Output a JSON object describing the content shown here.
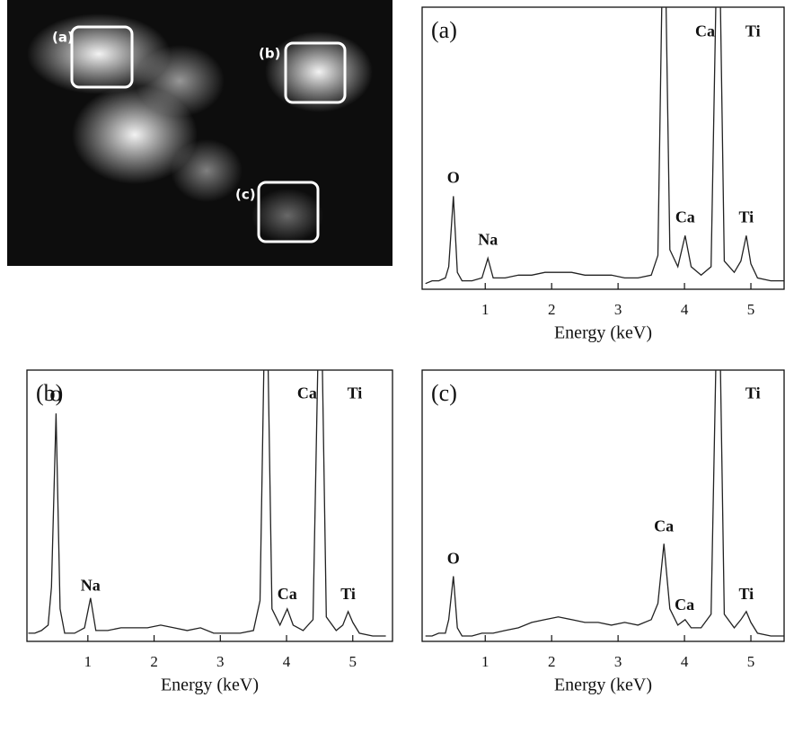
{
  "image": {
    "labels": [
      "(a)",
      "(b)",
      "(c)"
    ]
  },
  "chart_data": [
    {
      "type": "line",
      "panel_label": "(a)",
      "xlabel": "Energy (keV)",
      "xlim": [
        0.05,
        5.5
      ],
      "ylim": [
        0,
        100
      ],
      "xticks": [
        1,
        2,
        3,
        4,
        5
      ],
      "x": [
        0.1,
        0.2,
        0.3,
        0.4,
        0.45,
        0.52,
        0.58,
        0.65,
        0.8,
        0.95,
        1.04,
        1.12,
        1.3,
        1.5,
        1.7,
        1.9,
        2.1,
        2.3,
        2.5,
        2.7,
        2.9,
        3.1,
        3.3,
        3.5,
        3.6,
        3.69,
        3.78,
        3.9,
        4.01,
        4.1,
        4.25,
        4.4,
        4.51,
        4.6,
        4.75,
        4.85,
        4.93,
        5.0,
        5.1,
        5.3,
        5.5
      ],
      "series": [
        {
          "color": "#222222",
          "values": [
            2,
            3,
            3,
            4,
            8,
            33,
            6,
            3,
            3,
            4,
            11,
            4,
            4,
            5,
            5,
            6,
            6,
            6,
            5,
            5,
            5,
            4,
            4,
            5,
            12,
            150,
            14,
            8,
            19,
            8,
            5,
            8,
            150,
            10,
            6,
            10,
            19,
            9,
            4,
            3,
            3
          ]
        }
      ],
      "annotations": [
        {
          "text": "O",
          "x": 0.52,
          "y": 39
        },
        {
          "text": "Na",
          "x": 1.04,
          "y": 17
        },
        {
          "text": "Ca",
          "x": 4.01,
          "y": 25
        },
        {
          "text": "Ti",
          "x": 4.93,
          "y": 25
        },
        {
          "text": "Ca",
          "x": 4.31,
          "y": 91
        },
        {
          "text": "Ti",
          "x": 5.03,
          "y": 91
        }
      ]
    },
    {
      "type": "line",
      "panel_label": "(b)",
      "xlabel": "Energy (keV)",
      "xlim": [
        0.08,
        5.6
      ],
      "ylim": [
        0,
        100
      ],
      "xticks": [
        1,
        2,
        3,
        4,
        5
      ],
      "x": [
        0.1,
        0.2,
        0.3,
        0.4,
        0.45,
        0.52,
        0.58,
        0.65,
        0.8,
        0.95,
        1.04,
        1.12,
        1.3,
        1.5,
        1.7,
        1.9,
        2.1,
        2.3,
        2.5,
        2.7,
        2.9,
        3.1,
        3.3,
        3.5,
        3.6,
        3.69,
        3.78,
        3.9,
        4.01,
        4.1,
        4.25,
        4.4,
        4.51,
        4.6,
        4.75,
        4.85,
        4.93,
        5.0,
        5.1,
        5.3,
        5.5
      ],
      "series": [
        {
          "color": "#222222",
          "values": [
            3,
            3,
            4,
            6,
            20,
            84,
            12,
            3,
            3,
            5,
            16,
            4,
            4,
            5,
            5,
            5,
            6,
            5,
            4,
            5,
            3,
            3,
            3,
            4,
            15,
            150,
            12,
            6,
            12,
            6,
            4,
            8,
            150,
            9,
            4,
            6,
            11,
            7,
            3,
            2,
            2
          ]
        }
      ],
      "annotations": [
        {
          "text": "O",
          "x": 0.52,
          "y": 90
        },
        {
          "text": "Na",
          "x": 1.04,
          "y": 20
        },
        {
          "text": "Ca",
          "x": 4.01,
          "y": 17
        },
        {
          "text": "Ti",
          "x": 4.93,
          "y": 17
        },
        {
          "text": "Ca",
          "x": 4.31,
          "y": 91
        },
        {
          "text": "Ti",
          "x": 5.03,
          "y": 91
        }
      ]
    },
    {
      "type": "line",
      "panel_label": "(c)",
      "xlabel": "Energy (keV)",
      "xlim": [
        0.05,
        5.5
      ],
      "ylim": [
        0,
        100
      ],
      "xticks": [
        1,
        2,
        3,
        4,
        5
      ],
      "x": [
        0.1,
        0.2,
        0.3,
        0.4,
        0.45,
        0.52,
        0.58,
        0.65,
        0.8,
        0.95,
        1.04,
        1.12,
        1.3,
        1.5,
        1.7,
        1.9,
        2.1,
        2.3,
        2.5,
        2.7,
        2.9,
        3.1,
        3.3,
        3.5,
        3.6,
        3.69,
        3.78,
        3.9,
        4.01,
        4.1,
        4.25,
        4.4,
        4.51,
        4.6,
        4.75,
        4.85,
        4.93,
        5.0,
        5.1,
        5.3,
        5.5
      ],
      "series": [
        {
          "color": "#222222",
          "values": [
            2,
            2,
            3,
            3,
            8,
            24,
            5,
            2,
            2,
            3,
            3,
            3,
            4,
            5,
            7,
            8,
            9,
            8,
            7,
            7,
            6,
            7,
            6,
            8,
            14,
            36,
            12,
            6,
            8,
            5,
            5,
            10,
            150,
            10,
            5,
            8,
            11,
            7,
            3,
            2,
            2
          ]
        }
      ],
      "annotations": [
        {
          "text": "O",
          "x": 0.52,
          "y": 30
        },
        {
          "text": "Ca",
          "x": 3.69,
          "y": 42
        },
        {
          "text": "Ca",
          "x": 4.0,
          "y": 13
        },
        {
          "text": "Ti",
          "x": 4.93,
          "y": 17
        },
        {
          "text": "Ti",
          "x": 5.03,
          "y": 91
        }
      ]
    }
  ]
}
